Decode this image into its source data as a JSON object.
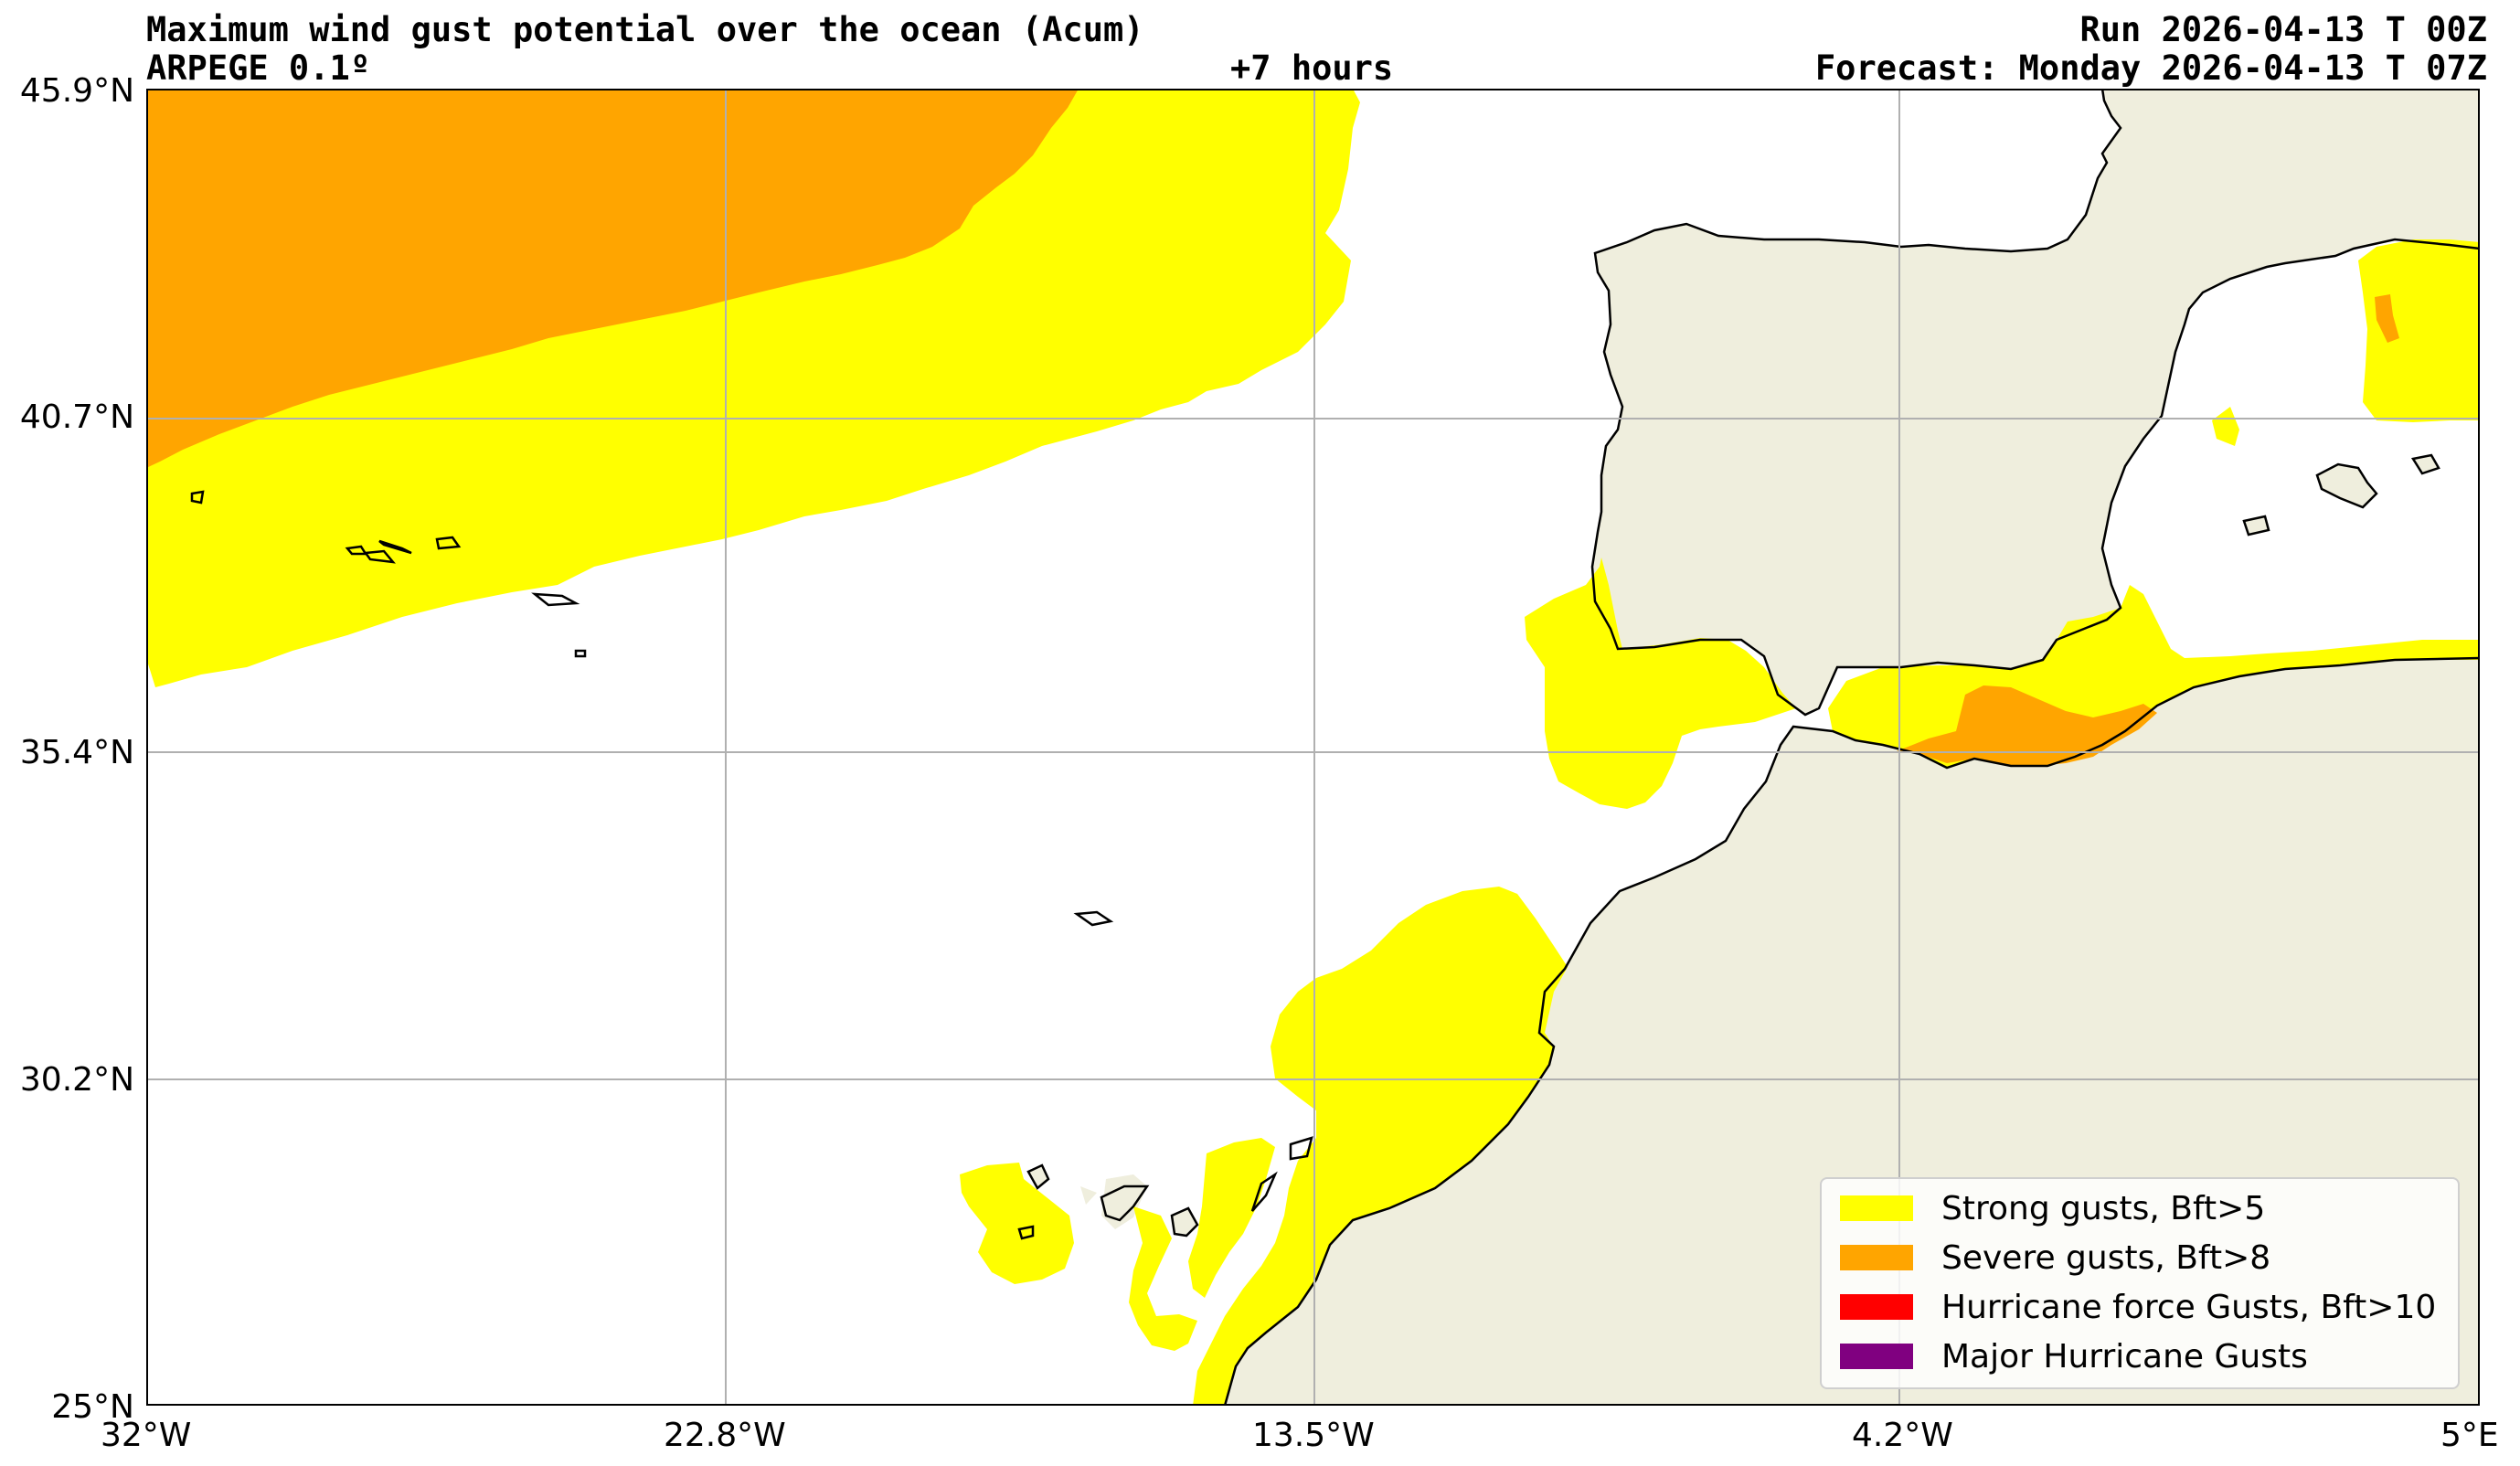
{
  "header": {
    "title": "Maximum wind gust potential over the ocean (Acum)",
    "model": "ARPEGE 0.1º",
    "lead_time": "+7 hours",
    "run": "Run 2026-04-13 T 00Z",
    "forecast": "Forecast: Monday 2026-04-13 T 07Z"
  },
  "axes": {
    "lon_ticks": [
      "32°W",
      "22.8°W",
      "13.5°W",
      "4.2°W",
      "5°E"
    ],
    "lat_ticks": [
      "45.9°N",
      "40.7°N",
      "35.4°N",
      "30.2°N",
      "25°N"
    ]
  },
  "legend": {
    "items": [
      {
        "label": "Strong gusts, Bft>5",
        "color": "#ffff00"
      },
      {
        "label": "Severe gusts, Bft>8",
        "color": "#ffa500"
      },
      {
        "label": "Hurricane force Gusts, Bft>10",
        "color": "#ff0000"
      },
      {
        "label": "Major Hurricane Gusts",
        "color": "#800080"
      }
    ]
  },
  "colors": {
    "land": "#efeedd",
    "ocean": "#ffffff",
    "strong": "#ffff00",
    "severe": "#ffa500",
    "grid": "#b0b0b0"
  }
}
